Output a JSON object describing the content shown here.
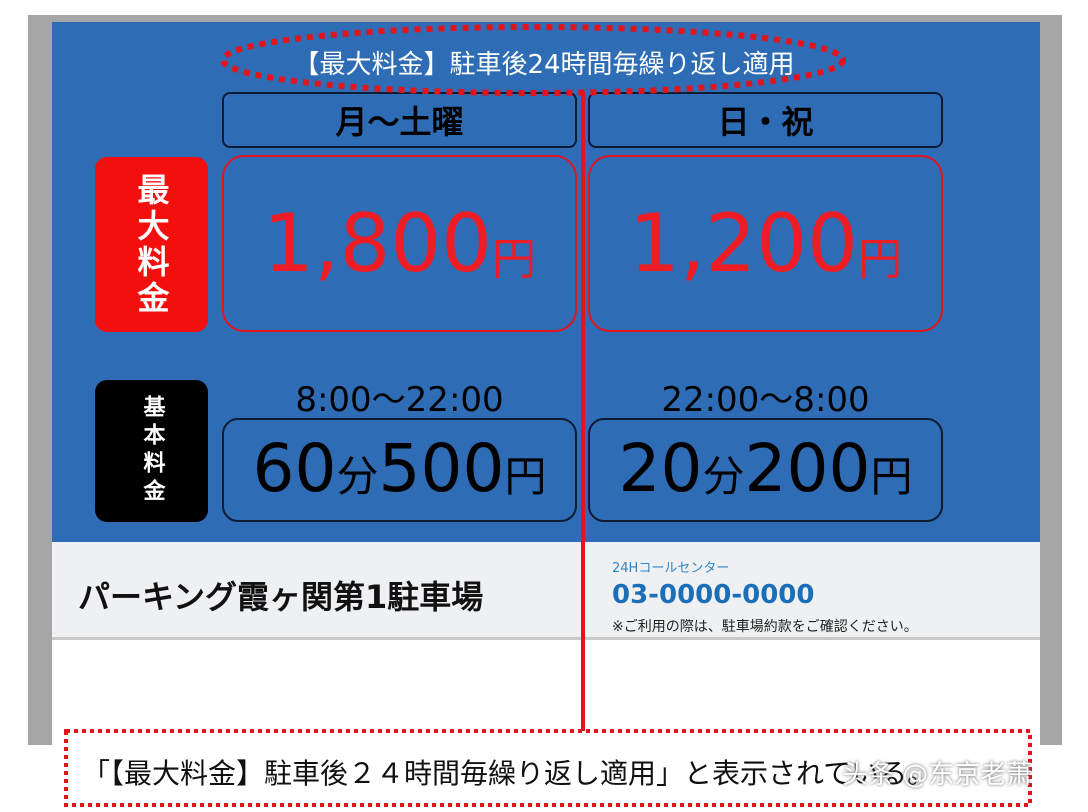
{
  "header": {
    "title": "【最大料金】駐車後24時間毎繰り返し適用"
  },
  "columns": [
    "月～土曜",
    "日・祝"
  ],
  "max_fee": {
    "label": "最大料金",
    "prices": [
      {
        "amount": "1,800",
        "unit": "円"
      },
      {
        "amount": "1,200",
        "unit": "円"
      }
    ]
  },
  "basic_fee": {
    "label": "基本料金",
    "hours": [
      "8:00～22:00",
      "22:00～8:00"
    ],
    "prices": [
      [
        "60",
        "分",
        "500",
        "円"
      ],
      [
        "20",
        "分",
        "200",
        "円"
      ]
    ]
  },
  "footer": {
    "name": "パーキング霞ヶ関第1駐車場",
    "call_center": "24Hコールセンター",
    "phone": "03-0000-0000",
    "note": "※ご利用の際は、駐車場約款をご確認ください。"
  },
  "caption": "「【最大料金】駐車後２４時間毎繰り返し適用」と表示されている。",
  "watermark": "头条 @东京老萧"
}
